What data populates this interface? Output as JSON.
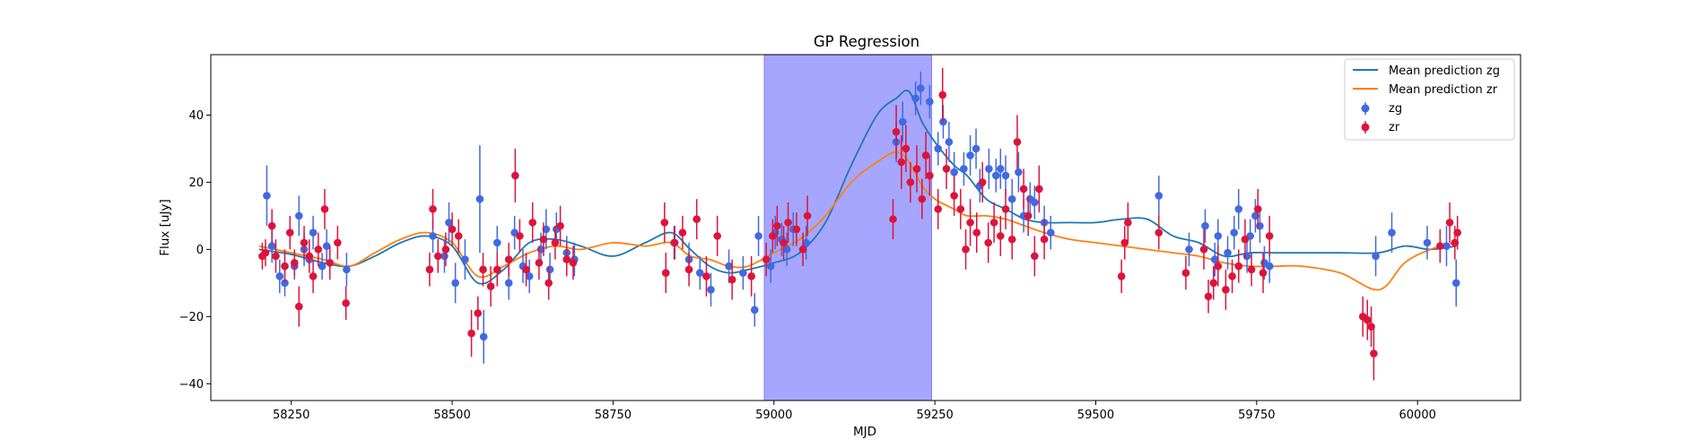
{
  "chart_data": {
    "type": "scatter",
    "title": "GP Regression",
    "xlabel": "MJD",
    "ylabel": "Flux [uJy]",
    "xlim": [
      58125,
      60160
    ],
    "ylim": [
      -45,
      58
    ],
    "xticks": [
      58250,
      58500,
      58750,
      59000,
      59250,
      59500,
      59750,
      60000
    ],
    "yticks": [
      -40,
      -20,
      0,
      20,
      40
    ],
    "grid": false,
    "legend_position": "upper right",
    "shaded_region": {
      "x_start": 58985,
      "x_end": 59245,
      "color": "#a6a6ff"
    },
    "lines": [
      {
        "name": "Mean prediction zg",
        "color": "#1f77b4",
        "x": [
          58200,
          58250,
          58300,
          58340,
          58380,
          58420,
          58460,
          58500,
          58540,
          58580,
          58620,
          58660,
          58700,
          58750,
          58800,
          58840,
          58870,
          58900,
          58930,
          58960,
          59000,
          59040,
          59080,
          59120,
          59160,
          59190,
          59210,
          59230,
          59250,
          59280,
          59300,
          59330,
          59360,
          59390,
          59420,
          59460,
          59500,
          59540,
          59580,
          59620,
          59660,
          59700,
          59740,
          59780,
          59820,
          59880,
          59940,
          59980,
          60020,
          60060
        ],
        "y": [
          0,
          -1.5,
          -4,
          -5,
          -2,
          2,
          4,
          1,
          -10,
          -6,
          2,
          3,
          1,
          -2,
          2,
          5,
          0,
          -5,
          -7,
          -6,
          -4,
          -1,
          8,
          25,
          40,
          45,
          47,
          38,
          32,
          25,
          22,
          15,
          12,
          9,
          8,
          8,
          8,
          9,
          9,
          4,
          2,
          -2,
          -1,
          -1,
          -1,
          -1,
          -1,
          1,
          0,
          1
        ]
      },
      {
        "name": "Mean prediction zr",
        "color": "#ff7f0e",
        "x": [
          58200,
          58250,
          58300,
          58340,
          58380,
          58420,
          58460,
          58500,
          58540,
          58580,
          58620,
          58660,
          58700,
          58750,
          58800,
          58840,
          58870,
          58900,
          58930,
          58960,
          59000,
          59040,
          59080,
          59120,
          59160,
          59190,
          59210,
          59230,
          59250,
          59280,
          59300,
          59330,
          59360,
          59390,
          59420,
          59460,
          59500,
          59540,
          59580,
          59620,
          59660,
          59700,
          59740,
          59780,
          59820,
          59880,
          59940,
          59980,
          60020,
          60060
        ],
        "y": [
          1,
          -1,
          -3,
          -5,
          -1,
          3,
          5,
          2,
          -8,
          -5,
          -1,
          1,
          0,
          2,
          1,
          2,
          -2,
          -3,
          -5,
          -5,
          -1,
          3,
          10,
          20,
          26,
          29,
          26,
          19,
          15,
          12,
          10,
          10,
          9,
          7,
          5,
          3,
          2,
          1,
          0,
          -1,
          -2,
          -4,
          -5,
          -5,
          -5,
          -7,
          -12,
          -4,
          0,
          2
        ]
      }
    ],
    "series": [
      {
        "name": "zg",
        "color": "#4169e1",
        "points": [
          [
            58212,
            16,
            9
          ],
          [
            58220,
            1,
            5
          ],
          [
            58232,
            -8,
            5
          ],
          [
            58240,
            -10,
            4
          ],
          [
            58255,
            -5,
            4
          ],
          [
            58262,
            10,
            6
          ],
          [
            58270,
            0,
            5
          ],
          [
            58278,
            -3,
            4
          ],
          [
            58284,
            5,
            5
          ],
          [
            58298,
            -5,
            4
          ],
          [
            58305,
            1,
            5
          ],
          [
            58336,
            -6,
            5
          ],
          [
            58470,
            4,
            5
          ],
          [
            58488,
            -2,
            5
          ],
          [
            58495,
            8,
            6
          ],
          [
            58505,
            -10,
            6
          ],
          [
            58520,
            -3,
            6
          ],
          [
            58543,
            15,
            16
          ],
          [
            58549,
            -26,
            8
          ],
          [
            58570,
            2,
            5
          ],
          [
            58588,
            -10,
            5
          ],
          [
            58597,
            5,
            5
          ],
          [
            58610,
            -5,
            5
          ],
          [
            58620,
            -8,
            5
          ],
          [
            58638,
            0,
            5
          ],
          [
            58646,
            6,
            6
          ],
          [
            58652,
            -6,
            5
          ],
          [
            58662,
            6,
            5
          ],
          [
            58678,
            -1,
            5
          ],
          [
            58690,
            -3,
            5
          ],
          [
            58846,
            2,
            5
          ],
          [
            58868,
            -3,
            5
          ],
          [
            58885,
            -7,
            5
          ],
          [
            58902,
            -12,
            5
          ],
          [
            58930,
            -5,
            5
          ],
          [
            58952,
            -7,
            5
          ],
          [
            58970,
            -18,
            5
          ],
          [
            58976,
            4,
            6
          ],
          [
            58995,
            -5,
            5
          ],
          [
            59002,
            5,
            5
          ],
          [
            59012,
            3,
            5
          ],
          [
            59020,
            0,
            5
          ],
          [
            59030,
            6,
            5
          ],
          [
            59050,
            2,
            5
          ],
          [
            59190,
            32,
            6
          ],
          [
            59200,
            38,
            6
          ],
          [
            59220,
            45,
            5
          ],
          [
            59228,
            48,
            5
          ],
          [
            59242,
            44,
            5
          ],
          [
            59255,
            30,
            5
          ],
          [
            59263,
            38,
            5
          ],
          [
            59272,
            32,
            6
          ],
          [
            59280,
            23,
            6
          ],
          [
            59295,
            24,
            5
          ],
          [
            59305,
            28,
            6
          ],
          [
            59314,
            30,
            6
          ],
          [
            59320,
            19,
            5
          ],
          [
            59334,
            24,
            6
          ],
          [
            59345,
            22,
            5
          ],
          [
            59352,
            24,
            6
          ],
          [
            59360,
            22,
            6
          ],
          [
            59370,
            15,
            6
          ],
          [
            59380,
            23,
            6
          ],
          [
            59388,
            10,
            5
          ],
          [
            59398,
            15,
            5
          ],
          [
            59405,
            14,
            5
          ],
          [
            59420,
            8,
            5
          ],
          [
            59430,
            5,
            5
          ],
          [
            59598,
            16,
            6
          ],
          [
            59645,
            0,
            5
          ],
          [
            59670,
            7,
            5
          ],
          [
            59685,
            -3,
            5
          ],
          [
            59690,
            4,
            5
          ],
          [
            59705,
            -1,
            5
          ],
          [
            59715,
            5,
            5
          ],
          [
            59722,
            12,
            6
          ],
          [
            59735,
            -2,
            5
          ],
          [
            59740,
            4,
            5
          ],
          [
            59748,
            10,
            5
          ],
          [
            59755,
            7,
            5
          ],
          [
            59762,
            -4,
            5
          ],
          [
            59770,
            -5,
            5
          ],
          [
            59935,
            -2,
            6
          ],
          [
            59960,
            5,
            6
          ],
          [
            60015,
            2,
            5
          ],
          [
            60045,
            1,
            6
          ],
          [
            60060,
            -10,
            7
          ]
        ]
      },
      {
        "name": "zr",
        "color": "#dc143c",
        "points": [
          [
            58205,
            -2,
            4
          ],
          [
            58210,
            -1,
            4
          ],
          [
            58220,
            7,
            5
          ],
          [
            58226,
            -2,
            5
          ],
          [
            58240,
            -5,
            5
          ],
          [
            58248,
            5,
            5
          ],
          [
            58255,
            -4,
            4
          ],
          [
            58262,
            -17,
            6
          ],
          [
            58270,
            2,
            5
          ],
          [
            58278,
            -2,
            5
          ],
          [
            58284,
            -8,
            5
          ],
          [
            58292,
            0,
            5
          ],
          [
            58302,
            12,
            6
          ],
          [
            58310,
            -4,
            5
          ],
          [
            58322,
            2,
            5
          ],
          [
            58335,
            -16,
            5
          ],
          [
            58465,
            -6,
            5
          ],
          [
            58470,
            12,
            6
          ],
          [
            58478,
            -2,
            5
          ],
          [
            58490,
            0,
            5
          ],
          [
            58500,
            6,
            5
          ],
          [
            58510,
            4,
            5
          ],
          [
            58530,
            -25,
            7
          ],
          [
            58540,
            -19,
            5
          ],
          [
            58548,
            -6,
            5
          ],
          [
            58560,
            -11,
            6
          ],
          [
            58570,
            -6,
            5
          ],
          [
            58588,
            -3,
            5
          ],
          [
            58598,
            22,
            8
          ],
          [
            58605,
            4,
            5
          ],
          [
            58615,
            -6,
            5
          ],
          [
            58625,
            8,
            6
          ],
          [
            58635,
            -4,
            5
          ],
          [
            58642,
            3,
            5
          ],
          [
            58650,
            -10,
            5
          ],
          [
            58660,
            2,
            5
          ],
          [
            58668,
            7,
            6
          ],
          [
            58678,
            -3,
            5
          ],
          [
            58688,
            -4,
            5
          ],
          [
            58830,
            8,
            6
          ],
          [
            58832,
            -7,
            6
          ],
          [
            58845,
            2,
            5
          ],
          [
            58858,
            5,
            5
          ],
          [
            58868,
            -6,
            5
          ],
          [
            58880,
            9,
            6
          ],
          [
            58895,
            -8,
            6
          ],
          [
            58912,
            4,
            6
          ],
          [
            58935,
            -9,
            6
          ],
          [
            58965,
            -8,
            6
          ],
          [
            58988,
            -3,
            5
          ],
          [
            58998,
            4,
            5
          ],
          [
            59005,
            7,
            6
          ],
          [
            59015,
            2,
            5
          ],
          [
            59022,
            8,
            6
          ],
          [
            59035,
            6,
            5
          ],
          [
            59045,
            0,
            5
          ],
          [
            59052,
            10,
            6
          ],
          [
            59185,
            9,
            6
          ],
          [
            59190,
            35,
            8
          ],
          [
            59198,
            26,
            8
          ],
          [
            59205,
            30,
            7
          ],
          [
            59212,
            20,
            6
          ],
          [
            59222,
            24,
            7
          ],
          [
            59230,
            15,
            6
          ],
          [
            59236,
            28,
            7
          ],
          [
            59242,
            22,
            6
          ],
          [
            59255,
            12,
            6
          ],
          [
            59262,
            46,
            8
          ],
          [
            59268,
            24,
            6
          ],
          [
            59280,
            16,
            6
          ],
          [
            59290,
            12,
            6
          ],
          [
            59298,
            0,
            6
          ],
          [
            59305,
            8,
            7
          ],
          [
            59315,
            5,
            6
          ],
          [
            59324,
            20,
            6
          ],
          [
            59333,
            2,
            6
          ],
          [
            59342,
            8,
            6
          ],
          [
            59352,
            4,
            6
          ],
          [
            59360,
            12,
            6
          ],
          [
            59370,
            3,
            6
          ],
          [
            59378,
            32,
            8
          ],
          [
            59388,
            18,
            6
          ],
          [
            59395,
            10,
            6
          ],
          [
            59405,
            -2,
            6
          ],
          [
            59412,
            18,
            7
          ],
          [
            59420,
            3,
            6
          ],
          [
            59540,
            -8,
            5
          ],
          [
            59545,
            2,
            5
          ],
          [
            59550,
            8,
            6
          ],
          [
            59598,
            5,
            5
          ],
          [
            59640,
            -7,
            5
          ],
          [
            59668,
            0,
            6
          ],
          [
            59675,
            -14,
            5
          ],
          [
            59683,
            -10,
            5
          ],
          [
            59690,
            -5,
            6
          ],
          [
            59702,
            -12,
            6
          ],
          [
            59712,
            -8,
            5
          ],
          [
            59722,
            -5,
            5
          ],
          [
            59732,
            3,
            6
          ],
          [
            59742,
            -6,
            5
          ],
          [
            59752,
            12,
            6
          ],
          [
            59760,
            -7,
            6
          ],
          [
            59770,
            4,
            6
          ],
          [
            59915,
            -20,
            6
          ],
          [
            59922,
            -21,
            6
          ],
          [
            59928,
            -23,
            6
          ],
          [
            59932,
            -31,
            8
          ],
          [
            60035,
            1,
            5
          ],
          [
            60050,
            8,
            6
          ],
          [
            60058,
            2,
            5
          ],
          [
            60062,
            5,
            5
          ]
        ]
      }
    ]
  }
}
